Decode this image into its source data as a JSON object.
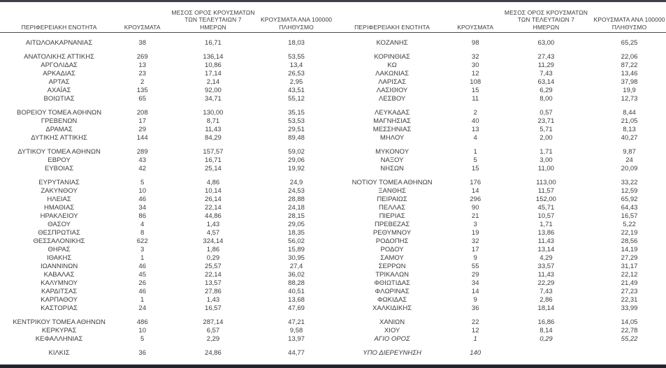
{
  "page": {
    "background": "#ffffff",
    "text_color": "#3b3b3b",
    "top_rule_color": "#3f3f4a",
    "bottom_rule_color": "#23242e",
    "header_rule_color": "#4a4a4a"
  },
  "headers": {
    "region": "ΠΕΡΙΦΕΡΕΙΑΚΗ ΕΝΟΤΗΤΑ",
    "cases": "ΚΡΟΥΣΜΑΤΑ",
    "avg7_lines": [
      "ΜΕΣΟΣ ΟΡΟΣ ΚΡΟΥΣΜΑΤΩΝ",
      "ΤΩΝ ΤΕΛΕΥΤΑΙΩΝ 7",
      "ΗΜΕΡΩΝ"
    ],
    "per100k_lines": [
      "ΚΡΟΥΣΜΑΤΑ ΑΝΑ 100000",
      "ΠΛΗΘΥΣΜΟ"
    ]
  },
  "left_table": {
    "groups": [
      [
        {
          "name": "ΑΙΤΩΛΟΑΚΑΡΝΑΝΙΑΣ",
          "cases": "38",
          "avg7": "16,71",
          "per100k": "18,03"
        }
      ],
      [
        {
          "name": "ΑΝΑΤΟΛΙΚΗΣ ΑΤΤΙΚΗΣ",
          "cases": "269",
          "avg7": "136,14",
          "per100k": "53,55"
        },
        {
          "name": "ΑΡΓΟΛΙΔΑΣ",
          "cases": "13",
          "avg7": "10,86",
          "per100k": "13,4"
        },
        {
          "name": "ΑΡΚΑΔΙΑΣ",
          "cases": "23",
          "avg7": "17,14",
          "per100k": "26,53"
        },
        {
          "name": "ΑΡΤΑΣ",
          "cases": "2",
          "avg7": "2,14",
          "per100k": "2,95"
        },
        {
          "name": "ΑΧΑΪΑΣ",
          "cases": "135",
          "avg7": "92,00",
          "per100k": "43,51"
        },
        {
          "name": "ΒΟΙΩΤΙΑΣ",
          "cases": "65",
          "avg7": "34,71",
          "per100k": "55,12"
        }
      ],
      [
        {
          "name": "ΒΟΡΕΙΟΥ ΤΟΜΕΑ ΑΘΗΝΩΝ",
          "cases": "208",
          "avg7": "130,00",
          "per100k": "35,15"
        },
        {
          "name": "ΓΡΕΒΕΝΩΝ",
          "cases": "17",
          "avg7": "8,71",
          "per100k": "53,53"
        },
        {
          "name": "ΔΡΑΜΑΣ",
          "cases": "29",
          "avg7": "11,43",
          "per100k": "29,51"
        },
        {
          "name": "ΔΥΤΙΚΗΣ ΑΤΤΙΚΗΣ",
          "cases": "144",
          "avg7": "84,29",
          "per100k": "89,48"
        }
      ],
      [
        {
          "name": "ΔΥΤΙΚΟΥ ΤΟΜΕΑ ΑΘΗΝΩΝ",
          "cases": "289",
          "avg7": "157,57",
          "per100k": "59,02"
        },
        {
          "name": "ΕΒΡΟΥ",
          "cases": "43",
          "avg7": "16,71",
          "per100k": "29,06"
        },
        {
          "name": "ΕΥΒΟΙΑΣ",
          "cases": "42",
          "avg7": "25,14",
          "per100k": "19,92"
        }
      ],
      [
        {
          "name": "ΕΥΡΥΤΑΝΙΑΣ",
          "cases": "5",
          "avg7": "4,86",
          "per100k": "24,9"
        },
        {
          "name": "ΖΑΚΥΝΘΟΥ",
          "cases": "10",
          "avg7": "10,14",
          "per100k": "24,53"
        },
        {
          "name": "ΗΛΕΙΑΣ",
          "cases": "46",
          "avg7": "26,14",
          "per100k": "28,88"
        },
        {
          "name": "ΗΜΑΘΙΑΣ",
          "cases": "34",
          "avg7": "22,14",
          "per100k": "24,18"
        },
        {
          "name": "ΗΡΑΚΛΕΙΟΥ",
          "cases": "86",
          "avg7": "44,86",
          "per100k": "28,15"
        },
        {
          "name": "ΘΑΣΟΥ",
          "cases": "4",
          "avg7": "1,43",
          "per100k": "29,05"
        },
        {
          "name": "ΘΕΣΠΡΩΤΙΑΣ",
          "cases": "8",
          "avg7": "4,57",
          "per100k": "18,35"
        },
        {
          "name": "ΘΕΣΣΑΛΟΝΙΚΗΣ",
          "cases": "622",
          "avg7": "324,14",
          "per100k": "56,02"
        },
        {
          "name": "ΘΗΡΑΣ",
          "cases": "3",
          "avg7": "1,86",
          "per100k": "15,89"
        },
        {
          "name": "ΙΘΑΚΗΣ",
          "cases": "1",
          "avg7": "0,29",
          "per100k": "30,95"
        },
        {
          "name": "ΙΩΑΝΝΙΝΩΝ",
          "cases": "46",
          "avg7": "25,57",
          "per100k": "27,4"
        },
        {
          "name": "ΚΑΒΑΛΑΣ",
          "cases": "45",
          "avg7": "22,14",
          "per100k": "36,02"
        },
        {
          "name": "ΚΑΛΥΜΝΟΥ",
          "cases": "26",
          "avg7": "13,57",
          "per100k": "88,28"
        },
        {
          "name": "ΚΑΡΔΙΤΣΑΣ",
          "cases": "46",
          "avg7": "27,86",
          "per100k": "40,51"
        },
        {
          "name": "ΚΑΡΠΑΘΟΥ",
          "cases": "1",
          "avg7": "1,43",
          "per100k": "13,68"
        },
        {
          "name": "ΚΑΣΤΟΡΙΑΣ",
          "cases": "24",
          "avg7": "16,57",
          "per100k": "47,69"
        }
      ],
      [
        {
          "name": "ΚΕΝΤΡΙΚΟΥ ΤΟΜΕΑ ΑΘΗΝΩΝ",
          "cases": "486",
          "avg7": "287,14",
          "per100k": "47,21"
        },
        {
          "name": "ΚΕΡΚΥΡΑΣ",
          "cases": "10",
          "avg7": "6,57",
          "per100k": "9,58"
        },
        {
          "name": "ΚΕΦΑΛΛΗΝΙΑΣ",
          "cases": "5",
          "avg7": "2,29",
          "per100k": "13,97"
        }
      ],
      [
        {
          "name": "ΚΙΛΚΙΣ",
          "cases": "36",
          "avg7": "24,86",
          "per100k": "44,77"
        }
      ]
    ]
  },
  "right_table": {
    "groups": [
      [
        {
          "name": "ΚΟΖΑΝΗΣ",
          "cases": "98",
          "avg7": "63,00",
          "per100k": "65,25"
        }
      ],
      [
        {
          "name": "ΚΟΡΙΝΘΙΑΣ",
          "cases": "32",
          "avg7": "27,43",
          "per100k": "22,06"
        },
        {
          "name": "ΚΩ",
          "cases": "30",
          "avg7": "11,29",
          "per100k": "87,22"
        },
        {
          "name": "ΛΑΚΩΝΙΑΣ",
          "cases": "12",
          "avg7": "7,43",
          "per100k": "13,46"
        },
        {
          "name": "ΛΑΡΙΣΑΣ",
          "cases": "108",
          "avg7": "63,14",
          "per100k": "37,98"
        },
        {
          "name": "ΛΑΣΙΘΙΟΥ",
          "cases": "15",
          "avg7": "6,29",
          "per100k": "19,9"
        },
        {
          "name": "ΛΕΣΒΟΥ",
          "cases": "11",
          "avg7": "8,00",
          "per100k": "12,73"
        }
      ],
      [
        {
          "name": "ΛΕΥΚΑΔΑΣ",
          "cases": "2",
          "avg7": "0,57",
          "per100k": "8,44"
        },
        {
          "name": "ΜΑΓΝΗΣΙΑΣ",
          "cases": "40",
          "avg7": "23,71",
          "per100k": "21,05"
        },
        {
          "name": "ΜΕΣΣΗΝΙΑΣ",
          "cases": "13",
          "avg7": "5,71",
          "per100k": "8,13"
        },
        {
          "name": "ΜΗΛΟΥ",
          "cases": "4",
          "avg7": "2,00",
          "per100k": "40,27"
        }
      ],
      [
        {
          "name": "ΜΥΚΟΝΟΥ",
          "cases": "1",
          "avg7": "1,71",
          "per100k": "9,87"
        },
        {
          "name": "ΝΑΞΟΥ",
          "cases": "5",
          "avg7": "3,00",
          "per100k": "24"
        },
        {
          "name": "ΝΗΣΩΝ",
          "cases": "15",
          "avg7": "11,00",
          "per100k": "20,09"
        }
      ],
      [
        {
          "name": "ΝΟΤΙΟΥ ΤΟΜΕΑ ΑΘΗΝΩΝ",
          "cases": "176",
          "avg7": "113,00",
          "per100k": "33,22"
        },
        {
          "name": "ΞΑΝΘΗΣ",
          "cases": "14",
          "avg7": "11,57",
          "per100k": "12,59"
        },
        {
          "name": "ΠΕΙΡΑΙΩΣ",
          "cases": "296",
          "avg7": "152,00",
          "per100k": "65,92"
        },
        {
          "name": "ΠΕΛΛΑΣ",
          "cases": "90",
          "avg7": "45,71",
          "per100k": "64,43"
        },
        {
          "name": "ΠΙΕΡΙΑΣ",
          "cases": "21",
          "avg7": "10,57",
          "per100k": "16,57"
        },
        {
          "name": "ΠΡΕΒΕΖΑΣ",
          "cases": "3",
          "avg7": "1,71",
          "per100k": "5,22"
        },
        {
          "name": "ΡΕΘΥΜΝΟΥ",
          "cases": "19",
          "avg7": "13,86",
          "per100k": "22,19"
        },
        {
          "name": "ΡΟΔΟΠΗΣ",
          "cases": "32",
          "avg7": "11,43",
          "per100k": "28,56"
        },
        {
          "name": "ΡΟΔΟΥ",
          "cases": "17",
          "avg7": "13,14",
          "per100k": "14,19"
        },
        {
          "name": "ΣΑΜΟΥ",
          "cases": "9",
          "avg7": "4,29",
          "per100k": "27,29"
        },
        {
          "name": "ΣΕΡΡΩΝ",
          "cases": "55",
          "avg7": "33,57",
          "per100k": "31,17"
        },
        {
          "name": "ΤΡΙΚΑΛΩΝ",
          "cases": "29",
          "avg7": "11,43",
          "per100k": "22,12"
        },
        {
          "name": "ΦΘΙΩΤΙΔΑΣ",
          "cases": "34",
          "avg7": "22,29",
          "per100k": "21,49"
        },
        {
          "name": "ΦΛΩΡΙΝΑΣ",
          "cases": "14",
          "avg7": "7,43",
          "per100k": "27,23"
        },
        {
          "name": "ΦΩΚΙΔΑΣ",
          "cases": "9",
          "avg7": "2,86",
          "per100k": "22,31"
        },
        {
          "name": "ΧΑΛΚΙΔΙΚΗΣ",
          "cases": "36",
          "avg7": "18,14",
          "per100k": "33,99"
        }
      ],
      [
        {
          "name": "ΧΑΝΙΩΝ",
          "cases": "22",
          "avg7": "16,86",
          "per100k": "14,05"
        },
        {
          "name": "ΧΙΟΥ",
          "cases": "12",
          "avg7": "8,14",
          "per100k": "22,78"
        },
        {
          "name": "ΑΓΙΟ ΟΡΟΣ",
          "cases": "1",
          "avg7": "0,29",
          "per100k": "55,22",
          "italic": true
        }
      ],
      [
        {
          "name": "ΥΠΟ ΔΙΕΡΕΥΝΗΣΗ",
          "cases": "140",
          "avg7": "",
          "per100k": "",
          "italic": true
        }
      ]
    ]
  }
}
